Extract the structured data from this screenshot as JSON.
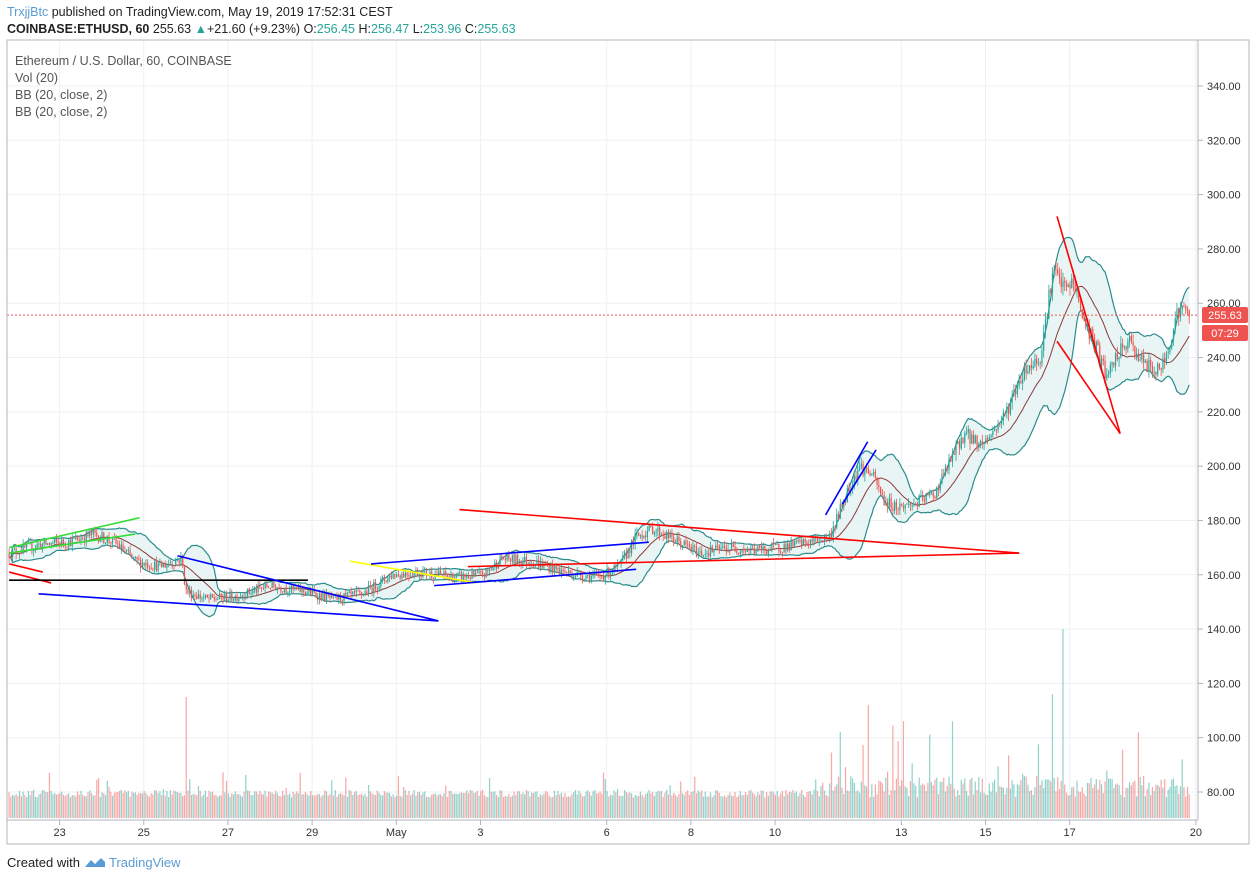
{
  "header": {
    "user": "TrxjjBtc",
    "published": "published on TradingView.com, May 19, 2019 17:52:31 CEST",
    "symbol": "COINBASE:ETHUSD, 60",
    "last": "255.63",
    "change": "+21.60 (+9.23%)",
    "o_label": "O:",
    "o_val": "256.45",
    "h_label": "H:",
    "h_val": "256.47",
    "l_label": "L:",
    "l_val": "253.96",
    "c_label": "C:",
    "c_val": "255.63"
  },
  "legend": {
    "title": "Ethereum / U.S. Dollar, 60, COINBASE",
    "vol": "Vol (20)",
    "bb1": "BB (20, close, 2)",
    "bb2": "BB (20, close, 2)"
  },
  "footer": {
    "created_with": "Created with",
    "brand": "TradingView"
  },
  "colors": {
    "up": "#26a69a",
    "down": "#ef5350",
    "bb_band": "#2a8c8c",
    "bb_basis": "#8b3a3a",
    "bb_fill": "#e3f2f1",
    "price_line": "#ef5350",
    "grid": "#eef0f3",
    "draw_red": "#ff0000",
    "draw_blue": "#0000ff",
    "draw_green": "#33dd33",
    "draw_yellow": "#ffff00",
    "draw_black": "#000000"
  },
  "chart_data": {
    "type": "candlestick",
    "title": "Ethereum / U.S. Dollar, 60, COINBASE",
    "ylim": [
      70,
      350
    ],
    "y_ticks": [
      80,
      100,
      120,
      140,
      160,
      180,
      200,
      220,
      240,
      260,
      280,
      300,
      320,
      340
    ],
    "y_tick_labels": [
      "80.00",
      "100.00",
      "120.00",
      "140.00",
      "160.00",
      "180.00",
      "200.00",
      "220.00",
      "240.00",
      "260.00",
      "280.00",
      "300.00",
      "320.00",
      "340.00"
    ],
    "x_labels": [
      {
        "day": 23,
        "label": "23"
      },
      {
        "day": 25,
        "label": "25"
      },
      {
        "day": 27,
        "label": "27"
      },
      {
        "day": 29,
        "label": "29"
      },
      {
        "day": 31,
        "label": "May"
      },
      {
        "day": 33,
        "label": "3"
      },
      {
        "day": 36,
        "label": "6"
      },
      {
        "day": 38,
        "label": "8"
      },
      {
        "day": 40,
        "label": "10"
      },
      {
        "day": 43,
        "label": "13"
      },
      {
        "day": 45,
        "label": "15"
      },
      {
        "day": 47,
        "label": "17"
      },
      {
        "day": 50,
        "label": "20"
      }
    ],
    "current_price": 255.63,
    "current_price_label": "255.63",
    "countdown_label": "07:29",
    "path": [
      [
        21.8,
        168
      ],
      [
        22.5,
        171
      ],
      [
        23.2,
        172
      ],
      [
        23.8,
        175
      ],
      [
        24.3,
        172
      ],
      [
        24.8,
        165
      ],
      [
        25.4,
        163
      ],
      [
        25.9,
        166
      ],
      [
        26.0,
        154
      ],
      [
        26.5,
        151
      ],
      [
        27.2,
        152
      ],
      [
        28.0,
        156
      ],
      [
        28.8,
        154
      ],
      [
        29.5,
        151
      ],
      [
        30.2,
        153
      ],
      [
        30.9,
        160
      ],
      [
        31.6,
        161
      ],
      [
        32.4,
        159
      ],
      [
        33.1,
        160
      ],
      [
        33.5,
        166
      ],
      [
        34.2,
        165
      ],
      [
        35.0,
        161
      ],
      [
        35.8,
        159
      ],
      [
        36.3,
        163
      ],
      [
        36.7,
        174
      ],
      [
        37.1,
        177
      ],
      [
        37.6,
        173
      ],
      [
        38.2,
        168
      ],
      [
        38.9,
        170
      ],
      [
        39.5,
        169
      ],
      [
        40.1,
        170
      ],
      [
        40.8,
        172
      ],
      [
        41.3,
        174
      ],
      [
        41.7,
        190
      ],
      [
        42.0,
        200
      ],
      [
        42.3,
        197
      ],
      [
        42.6,
        187
      ],
      [
        42.9,
        185
      ],
      [
        43.3,
        186
      ],
      [
        43.8,
        190
      ],
      [
        44.1,
        200
      ],
      [
        44.5,
        212
      ],
      [
        44.9,
        208
      ],
      [
        45.2,
        213
      ],
      [
        45.5,
        220
      ],
      [
        45.9,
        235
      ],
      [
        46.3,
        240
      ],
      [
        46.6,
        272
      ],
      [
        46.9,
        265
      ],
      [
        47.1,
        268
      ],
      [
        47.3,
        255
      ],
      [
        47.6,
        245
      ],
      [
        47.9,
        232
      ],
      [
        48.1,
        240
      ],
      [
        48.4,
        246
      ],
      [
        48.8,
        237
      ],
      [
        49.1,
        235
      ],
      [
        49.3,
        240
      ],
      [
        49.5,
        255
      ],
      [
        49.7,
        258
      ],
      [
        49.85,
        255.6
      ]
    ],
    "volume_spikes": [
      [
        26.0,
        115
      ],
      [
        46.85,
        140
      ],
      [
        46.6,
        116
      ],
      [
        42.2,
        112
      ],
      [
        44.2,
        106
      ]
    ],
    "drawings": [
      {
        "color": "draw_green",
        "p": [
          [
            21.8,
            170
          ],
          [
            24.9,
            181
          ]
        ]
      },
      {
        "color": "draw_green",
        "p": [
          [
            21.8,
            168
          ],
          [
            24.8,
            175
          ]
        ]
      },
      {
        "color": "draw_red",
        "p": [
          [
            21.8,
            164
          ],
          [
            22.6,
            161
          ]
        ]
      },
      {
        "color": "draw_red",
        "p": [
          [
            21.8,
            161
          ],
          [
            22.8,
            157
          ]
        ]
      },
      {
        "color": "draw_black",
        "p": [
          [
            21.8,
            158
          ],
          [
            28.9,
            158
          ]
        ]
      },
      {
        "color": "draw_blue",
        "p": [
          [
            22.5,
            153
          ],
          [
            32.0,
            143
          ]
        ]
      },
      {
        "color": "draw_blue",
        "p": [
          [
            25.8,
            167
          ],
          [
            32.0,
            143
          ]
        ]
      },
      {
        "color": "draw_yellow",
        "p": [
          [
            29.9,
            165
          ],
          [
            32.9,
            157
          ]
        ]
      },
      {
        "color": "draw_blue",
        "p": [
          [
            30.4,
            164
          ],
          [
            37.0,
            172
          ]
        ]
      },
      {
        "color": "draw_blue",
        "p": [
          [
            31.9,
            156
          ],
          [
            36.7,
            162
          ]
        ]
      },
      {
        "color": "draw_red",
        "p": [
          [
            32.5,
            184
          ],
          [
            45.8,
            168
          ]
        ]
      },
      {
        "color": "draw_red",
        "p": [
          [
            32.7,
            163
          ],
          [
            45.8,
            168
          ]
        ]
      },
      {
        "color": "draw_blue",
        "p": [
          [
            41.2,
            182
          ],
          [
            42.2,
            209
          ]
        ]
      },
      {
        "color": "draw_blue",
        "p": [
          [
            41.6,
            186
          ],
          [
            42.4,
            206
          ]
        ]
      },
      {
        "color": "draw_red",
        "p": [
          [
            46.7,
            292
          ],
          [
            48.2,
            212
          ]
        ]
      },
      {
        "color": "draw_red",
        "p": [
          [
            46.7,
            246
          ],
          [
            48.2,
            212
          ]
        ]
      }
    ]
  }
}
